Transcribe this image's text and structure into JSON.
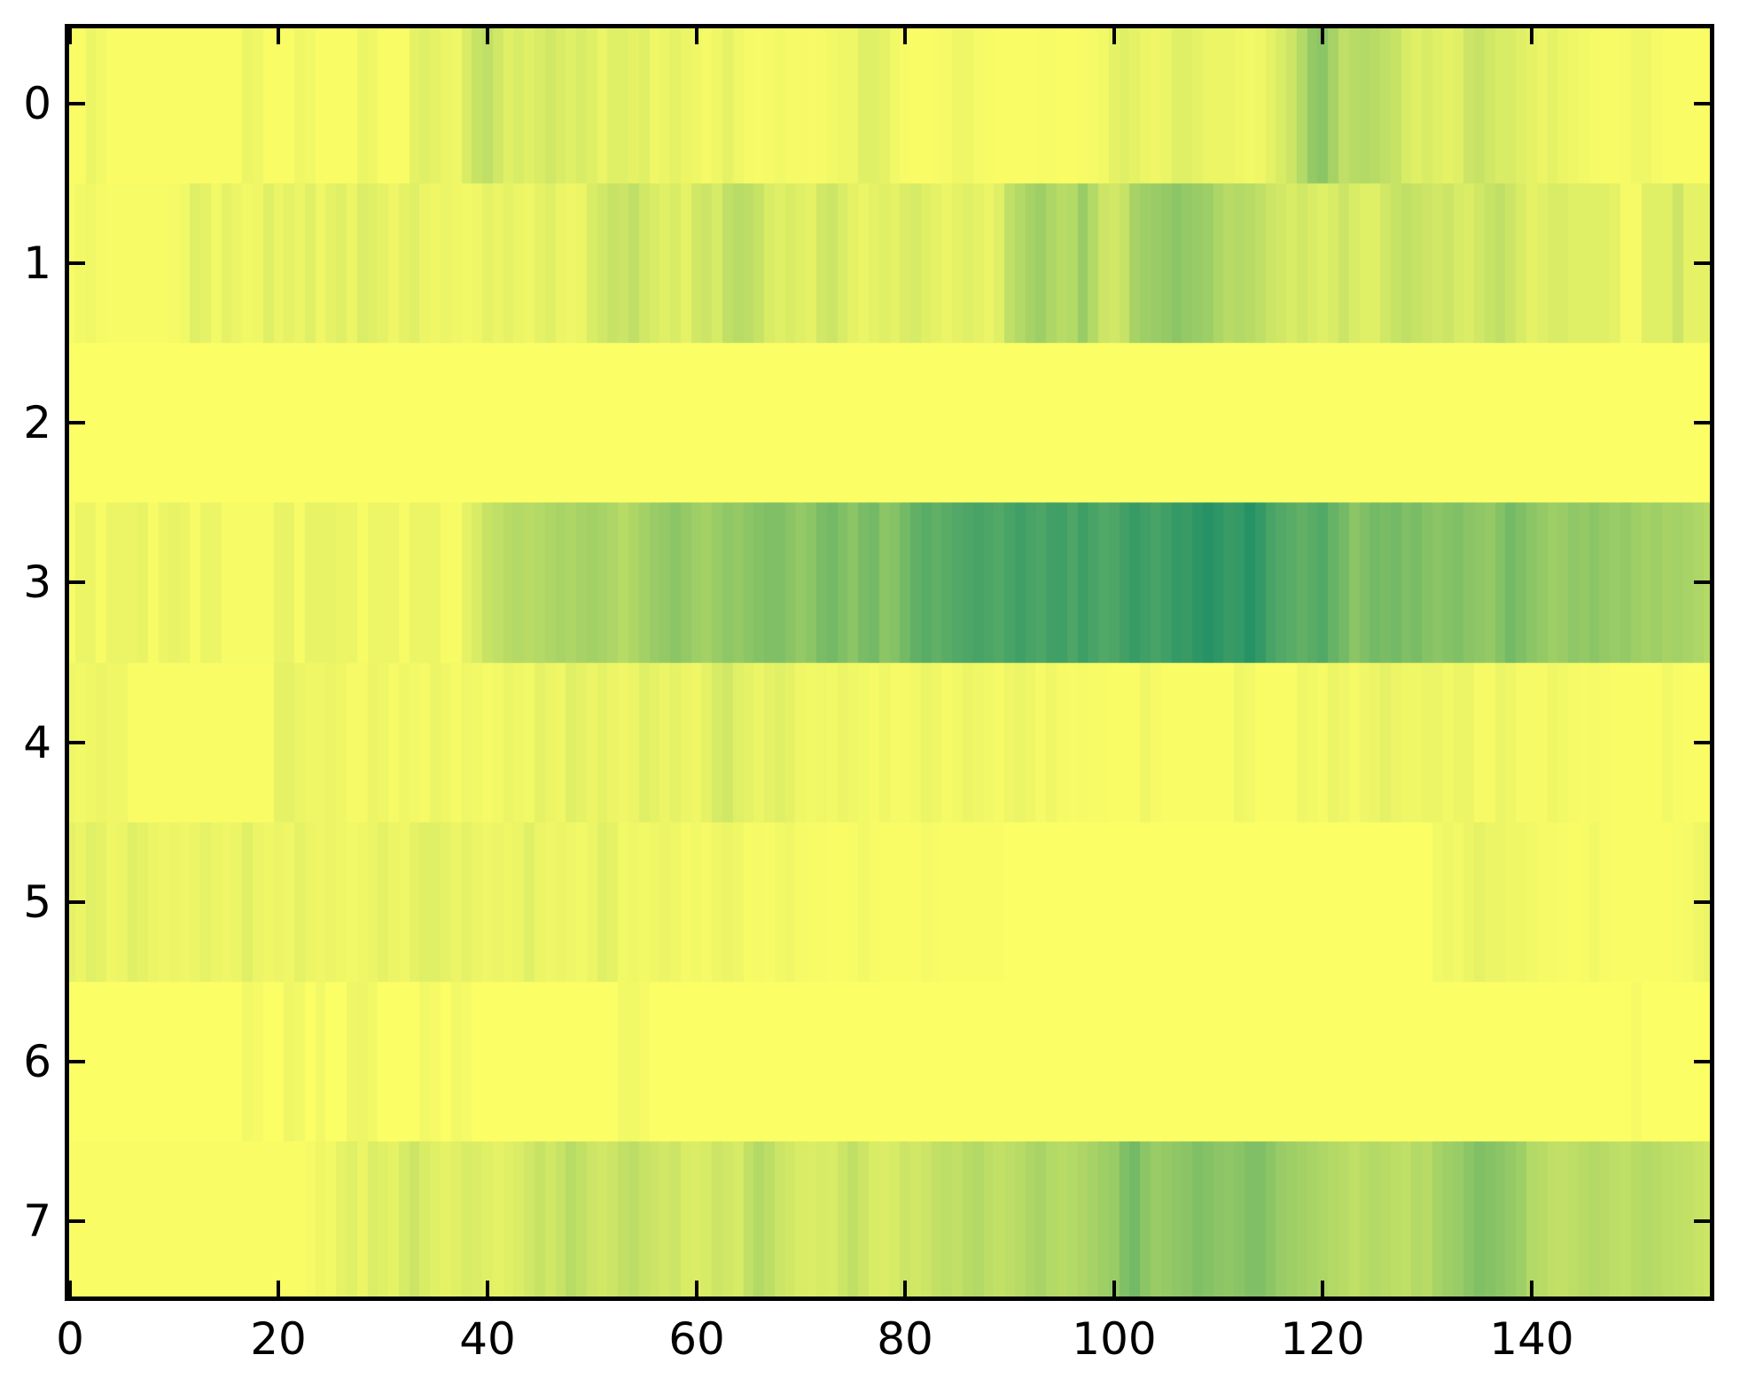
{
  "figure": {
    "background_color": "#ffffff",
    "spine_color": "#000000",
    "tick_color": "#000000",
    "label_color": "#000000"
  },
  "chart_data": {
    "type": "heatmap",
    "title": "",
    "xlabel": "",
    "ylabel": "",
    "n_rows": 8,
    "n_cols": 158,
    "x_range": [
      -0.5,
      157.5
    ],
    "y_range": [
      -0.5,
      7.5
    ],
    "grid": false,
    "legend_position": "none",
    "x_ticks": [
      0,
      20,
      40,
      60,
      80,
      100,
      120,
      140
    ],
    "x_tick_labels": [
      "0",
      "20",
      "40",
      "60",
      "80",
      "100",
      "120",
      "140"
    ],
    "y_ticks": [
      0,
      1,
      2,
      3,
      4,
      5,
      6,
      7
    ],
    "y_tick_labels": [
      "0",
      "1",
      "2",
      "3",
      "4",
      "5",
      "6",
      "7"
    ],
    "colormap": {
      "name": "summer_r",
      "low_color": "#ffff66",
      "high_color": "#007f66",
      "value_low": 0.0,
      "value_high": 1.0
    },
    "values": [
      [
        0.02,
        0.02,
        0.08,
        0.05,
        0.02,
        0.02,
        0.02,
        0.02,
        0.02,
        0.02,
        0.02,
        0.02,
        0.02,
        0.02,
        0.02,
        0.02,
        0.02,
        0.08,
        0.06,
        0.02,
        0.02,
        0.02,
        0.06,
        0.05,
        0.02,
        0.02,
        0.02,
        0.02,
        0.08,
        0.06,
        0.02,
        0.02,
        0.02,
        0.1,
        0.12,
        0.1,
        0.08,
        0.06,
        0.15,
        0.22,
        0.25,
        0.18,
        0.12,
        0.15,
        0.12,
        0.15,
        0.18,
        0.15,
        0.12,
        0.15,
        0.12,
        0.08,
        0.12,
        0.12,
        0.1,
        0.12,
        0.06,
        0.08,
        0.1,
        0.08,
        0.06,
        0.04,
        0.06,
        0.1,
        0.06,
        0.04,
        0.03,
        0.04,
        0.05,
        0.04,
        0.04,
        0.03,
        0.04,
        0.05,
        0.06,
        0.06,
        0.12,
        0.12,
        0.1,
        0.05,
        0.03,
        0.02,
        0.02,
        0.03,
        0.04,
        0.06,
        0.06,
        0.04,
        0.03,
        0.02,
        0.02,
        0.02,
        0.02,
        0.03,
        0.03,
        0.02,
        0.02,
        0.03,
        0.04,
        0.05,
        0.1,
        0.12,
        0.1,
        0.08,
        0.06,
        0.08,
        0.12,
        0.12,
        0.1,
        0.08,
        0.08,
        0.08,
        0.06,
        0.05,
        0.06,
        0.1,
        0.15,
        0.2,
        0.3,
        0.42,
        0.45,
        0.35,
        0.25,
        0.28,
        0.3,
        0.28,
        0.25,
        0.22,
        0.15,
        0.12,
        0.15,
        0.12,
        0.1,
        0.12,
        0.2,
        0.22,
        0.18,
        0.15,
        0.15,
        0.12,
        0.1,
        0.08,
        0.1,
        0.08,
        0.06,
        0.05,
        0.04,
        0.03,
        0.03,
        0.04,
        0.06,
        0.06,
        0.04,
        0.02,
        0.02,
        0.02,
        0.02,
        0.02
      ],
      [
        0.03,
        0.05,
        0.06,
        0.04,
        0.03,
        0.03,
        0.03,
        0.03,
        0.03,
        0.03,
        0.04,
        0.05,
        0.12,
        0.1,
        0.05,
        0.1,
        0.08,
        0.05,
        0.06,
        0.12,
        0.08,
        0.1,
        0.08,
        0.12,
        0.06,
        0.1,
        0.12,
        0.08,
        0.14,
        0.12,
        0.1,
        0.06,
        0.1,
        0.12,
        0.08,
        0.06,
        0.08,
        0.06,
        0.05,
        0.06,
        0.1,
        0.08,
        0.1,
        0.08,
        0.06,
        0.1,
        0.12,
        0.08,
        0.06,
        0.08,
        0.15,
        0.18,
        0.22,
        0.2,
        0.25,
        0.18,
        0.15,
        0.12,
        0.15,
        0.1,
        0.18,
        0.2,
        0.16,
        0.25,
        0.28,
        0.26,
        0.22,
        0.15,
        0.12,
        0.15,
        0.12,
        0.1,
        0.18,
        0.2,
        0.15,
        0.1,
        0.08,
        0.1,
        0.12,
        0.1,
        0.14,
        0.16,
        0.12,
        0.1,
        0.08,
        0.1,
        0.12,
        0.1,
        0.08,
        0.12,
        0.25,
        0.3,
        0.35,
        0.38,
        0.32,
        0.28,
        0.3,
        0.4,
        0.3,
        0.2,
        0.18,
        0.22,
        0.35,
        0.38,
        0.4,
        0.42,
        0.45,
        0.42,
        0.4,
        0.38,
        0.32,
        0.28,
        0.3,
        0.28,
        0.25,
        0.2,
        0.18,
        0.15,
        0.18,
        0.15,
        0.12,
        0.15,
        0.2,
        0.15,
        0.12,
        0.12,
        0.18,
        0.22,
        0.25,
        0.22,
        0.2,
        0.18,
        0.2,
        0.16,
        0.14,
        0.18,
        0.22,
        0.25,
        0.2,
        0.15,
        0.1,
        0.12,
        0.15,
        0.15,
        0.12,
        0.12,
        0.12,
        0.12,
        0.1,
        0.04,
        0.04,
        0.12,
        0.12,
        0.12,
        0.2,
        0.1,
        0.1,
        0.1
      ],
      [
        0.01,
        0.01,
        0.01,
        0.01,
        0.01,
        0.01,
        0.01,
        0.01,
        0.01,
        0.01,
        0.01,
        0.01,
        0.01,
        0.01,
        0.01,
        0.01,
        0.01,
        0.01,
        0.01,
        0.01,
        0.01,
        0.01,
        0.01,
        0.01,
        0.01,
        0.01,
        0.01,
        0.01,
        0.01,
        0.01,
        0.01,
        0.01,
        0.01,
        0.01,
        0.01,
        0.01,
        0.01,
        0.01,
        0.01,
        0.01,
        0.01,
        0.01,
        0.01,
        0.01,
        0.01,
        0.01,
        0.01,
        0.01,
        0.01,
        0.01,
        0.01,
        0.01,
        0.01,
        0.01,
        0.01,
        0.01,
        0.01,
        0.01,
        0.01,
        0.01,
        0.01,
        0.01,
        0.01,
        0.01,
        0.01,
        0.01,
        0.01,
        0.01,
        0.01,
        0.01,
        0.01,
        0.01,
        0.01,
        0.01,
        0.01,
        0.01,
        0.01,
        0.01,
        0.01,
        0.01,
        0.01,
        0.01,
        0.01,
        0.01,
        0.01,
        0.01,
        0.01,
        0.01,
        0.01,
        0.01,
        0.01,
        0.01,
        0.01,
        0.01,
        0.01,
        0.01,
        0.01,
        0.01,
        0.01,
        0.01,
        0.01,
        0.01,
        0.01,
        0.01,
        0.01,
        0.01,
        0.01,
        0.01,
        0.01,
        0.01,
        0.01,
        0.01,
        0.01,
        0.01,
        0.01,
        0.01,
        0.01,
        0.01,
        0.01,
        0.01,
        0.01,
        0.01,
        0.01,
        0.01,
        0.01,
        0.01,
        0.01,
        0.01,
        0.01,
        0.01,
        0.01,
        0.01,
        0.01,
        0.01,
        0.01,
        0.01,
        0.01,
        0.01,
        0.01,
        0.01,
        0.01,
        0.01,
        0.01,
        0.01,
        0.01,
        0.01,
        0.01,
        0.01,
        0.01,
        0.01,
        0.01,
        0.01,
        0.01,
        0.01,
        0.01,
        0.01,
        0.01,
        0.01
      ],
      [
        0.03,
        0.08,
        0.08,
        0.03,
        0.08,
        0.08,
        0.08,
        0.09,
        0.03,
        0.08,
        0.09,
        0.08,
        0.03,
        0.08,
        0.08,
        0.03,
        0.03,
        0.03,
        0.03,
        0.03,
        0.09,
        0.09,
        0.03,
        0.09,
        0.09,
        0.09,
        0.08,
        0.08,
        0.03,
        0.07,
        0.07,
        0.07,
        0.03,
        0.08,
        0.08,
        0.08,
        0.03,
        0.03,
        0.1,
        0.15,
        0.22,
        0.25,
        0.28,
        0.3,
        0.28,
        0.3,
        0.32,
        0.34,
        0.32,
        0.35,
        0.36,
        0.35,
        0.32,
        0.28,
        0.32,
        0.36,
        0.4,
        0.42,
        0.45,
        0.42,
        0.38,
        0.36,
        0.4,
        0.44,
        0.42,
        0.45,
        0.48,
        0.5,
        0.5,
        0.46,
        0.42,
        0.45,
        0.52,
        0.55,
        0.5,
        0.45,
        0.52,
        0.55,
        0.45,
        0.48,
        0.55,
        0.62,
        0.65,
        0.62,
        0.65,
        0.68,
        0.7,
        0.72,
        0.7,
        0.68,
        0.72,
        0.75,
        0.72,
        0.7,
        0.74,
        0.75,
        0.7,
        0.76,
        0.72,
        0.68,
        0.7,
        0.74,
        0.78,
        0.75,
        0.72,
        0.75,
        0.8,
        0.78,
        0.82,
        0.85,
        0.82,
        0.78,
        0.8,
        0.85,
        0.8,
        0.72,
        0.68,
        0.65,
        0.62,
        0.65,
        0.68,
        0.6,
        0.55,
        0.45,
        0.5,
        0.55,
        0.52,
        0.55,
        0.5,
        0.52,
        0.48,
        0.45,
        0.48,
        0.5,
        0.46,
        0.44,
        0.42,
        0.48,
        0.55,
        0.5,
        0.45,
        0.42,
        0.38,
        0.4,
        0.44,
        0.42,
        0.45,
        0.42,
        0.4,
        0.42,
        0.38,
        0.36,
        0.38,
        0.35,
        0.36,
        0.34,
        0.32,
        0.3
      ],
      [
        0.06,
        0.05,
        0.06,
        0.08,
        0.06,
        0.06,
        0.02,
        0.02,
        0.02,
        0.02,
        0.02,
        0.02,
        0.02,
        0.02,
        0.02,
        0.02,
        0.02,
        0.02,
        0.02,
        0.02,
        0.1,
        0.1,
        0.08,
        0.06,
        0.06,
        0.08,
        0.06,
        0.04,
        0.04,
        0.08,
        0.06,
        0.04,
        0.06,
        0.05,
        0.04,
        0.08,
        0.06,
        0.04,
        0.06,
        0.05,
        0.04,
        0.05,
        0.08,
        0.06,
        0.05,
        0.1,
        0.08,
        0.06,
        0.12,
        0.1,
        0.08,
        0.1,
        0.08,
        0.06,
        0.08,
        0.12,
        0.1,
        0.08,
        0.1,
        0.08,
        0.06,
        0.1,
        0.16,
        0.18,
        0.12,
        0.1,
        0.08,
        0.1,
        0.12,
        0.1,
        0.06,
        0.05,
        0.06,
        0.05,
        0.08,
        0.06,
        0.05,
        0.04,
        0.06,
        0.04,
        0.04,
        0.05,
        0.08,
        0.06,
        0.04,
        0.05,
        0.08,
        0.06,
        0.05,
        0.04,
        0.06,
        0.08,
        0.06,
        0.04,
        0.06,
        0.04,
        0.03,
        0.04,
        0.03,
        0.03,
        0.02,
        0.02,
        0.02,
        0.06,
        0.04,
        0.02,
        0.02,
        0.02,
        0.02,
        0.02,
        0.02,
        0.02,
        0.06,
        0.05,
        0.02,
        0.02,
        0.02,
        0.02,
        0.06,
        0.05,
        0.04,
        0.08,
        0.06,
        0.04,
        0.06,
        0.08,
        0.1,
        0.08,
        0.06,
        0.06,
        0.08,
        0.08,
        0.05,
        0.08,
        0.08,
        0.04,
        0.04,
        0.08,
        0.06,
        0.04,
        0.04,
        0.04,
        0.06,
        0.05,
        0.04,
        0.03,
        0.04,
        0.03,
        0.02,
        0.02,
        0.02,
        0.02,
        0.02,
        0.05,
        0.03,
        0.02,
        0.02,
        0.02
      ],
      [
        0.1,
        0.08,
        0.12,
        0.1,
        0.06,
        0.08,
        0.12,
        0.1,
        0.08,
        0.06,
        0.08,
        0.06,
        0.08,
        0.1,
        0.08,
        0.06,
        0.08,
        0.12,
        0.08,
        0.06,
        0.08,
        0.06,
        0.1,
        0.08,
        0.06,
        0.08,
        0.06,
        0.05,
        0.06,
        0.08,
        0.1,
        0.08,
        0.06,
        0.1,
        0.12,
        0.12,
        0.1,
        0.08,
        0.1,
        0.08,
        0.06,
        0.08,
        0.06,
        0.08,
        0.12,
        0.08,
        0.06,
        0.08,
        0.06,
        0.05,
        0.08,
        0.12,
        0.1,
        0.05,
        0.06,
        0.05,
        0.06,
        0.08,
        0.06,
        0.04,
        0.05,
        0.04,
        0.06,
        0.08,
        0.06,
        0.03,
        0.04,
        0.03,
        0.05,
        0.06,
        0.04,
        0.03,
        0.03,
        0.02,
        0.02,
        0.03,
        0.05,
        0.03,
        0.02,
        0.02,
        0.02,
        0.02,
        0.04,
        0.03,
        0.02,
        0.02,
        0.02,
        0.02,
        0.02,
        0.02,
        0.01,
        0.01,
        0.01,
        0.01,
        0.01,
        0.01,
        0.01,
        0.01,
        0.01,
        0.01,
        0.01,
        0.01,
        0.01,
        0.01,
        0.01,
        0.01,
        0.01,
        0.01,
        0.01,
        0.01,
        0.01,
        0.01,
        0.01,
        0.01,
        0.01,
        0.01,
        0.01,
        0.01,
        0.01,
        0.01,
        0.01,
        0.01,
        0.01,
        0.01,
        0.01,
        0.01,
        0.01,
        0.01,
        0.01,
        0.01,
        0.01,
        0.05,
        0.06,
        0.05,
        0.08,
        0.1,
        0.08,
        0.08,
        0.06,
        0.06,
        0.05,
        0.04,
        0.04,
        0.03,
        0.02,
        0.03,
        0.05,
        0.03,
        0.02,
        0.02,
        0.02,
        0.02,
        0.02,
        0.02,
        0.03,
        0.04,
        0.06,
        0.08
      ],
      [
        0.01,
        0.01,
        0.01,
        0.01,
        0.01,
        0.01,
        0.01,
        0.01,
        0.01,
        0.01,
        0.01,
        0.01,
        0.01,
        0.01,
        0.01,
        0.01,
        0.01,
        0.05,
        0.04,
        0.01,
        0.01,
        0.06,
        0.05,
        0.01,
        0.05,
        0.01,
        0.01,
        0.06,
        0.07,
        0.05,
        0.01,
        0.01,
        0.01,
        0.01,
        0.05,
        0.04,
        0.01,
        0.05,
        0.04,
        0.01,
        0.01,
        0.01,
        0.01,
        0.01,
        0.01,
        0.01,
        0.01,
        0.01,
        0.01,
        0.01,
        0.01,
        0.01,
        0.01,
        0.05,
        0.05,
        0.04,
        0.01,
        0.01,
        0.01,
        0.01,
        0.01,
        0.01,
        0.01,
        0.01,
        0.01,
        0.01,
        0.01,
        0.01,
        0.01,
        0.01,
        0.01,
        0.01,
        0.01,
        0.01,
        0.01,
        0.01,
        0.01,
        0.01,
        0.01,
        0.01,
        0.01,
        0.01,
        0.01,
        0.01,
        0.01,
        0.01,
        0.01,
        0.01,
        0.01,
        0.01,
        0.01,
        0.01,
        0.01,
        0.01,
        0.01,
        0.01,
        0.01,
        0.01,
        0.01,
        0.01,
        0.01,
        0.01,
        0.01,
        0.01,
        0.01,
        0.01,
        0.01,
        0.01,
        0.01,
        0.01,
        0.01,
        0.01,
        0.01,
        0.01,
        0.01,
        0.01,
        0.01,
        0.01,
        0.01,
        0.01,
        0.01,
        0.01,
        0.01,
        0.01,
        0.01,
        0.01,
        0.01,
        0.01,
        0.01,
        0.01,
        0.01,
        0.01,
        0.01,
        0.01,
        0.01,
        0.01,
        0.01,
        0.01,
        0.01,
        0.01,
        0.01,
        0.01,
        0.01,
        0.01,
        0.01,
        0.01,
        0.01,
        0.01,
        0.01,
        0.01,
        0.04,
        0.01,
        0.01,
        0.01,
        0.01,
        0.01,
        0.01,
        0.01
      ],
      [
        0.02,
        0.02,
        0.02,
        0.02,
        0.02,
        0.02,
        0.02,
        0.02,
        0.02,
        0.02,
        0.02,
        0.02,
        0.02,
        0.02,
        0.02,
        0.02,
        0.02,
        0.02,
        0.02,
        0.02,
        0.02,
        0.02,
        0.02,
        0.04,
        0.06,
        0.05,
        0.1,
        0.12,
        0.08,
        0.14,
        0.12,
        0.1,
        0.16,
        0.2,
        0.15,
        0.12,
        0.1,
        0.12,
        0.15,
        0.14,
        0.12,
        0.1,
        0.12,
        0.14,
        0.18,
        0.22,
        0.18,
        0.22,
        0.28,
        0.24,
        0.2,
        0.18,
        0.2,
        0.24,
        0.26,
        0.22,
        0.2,
        0.18,
        0.2,
        0.15,
        0.14,
        0.16,
        0.2,
        0.18,
        0.16,
        0.24,
        0.3,
        0.26,
        0.2,
        0.18,
        0.15,
        0.14,
        0.16,
        0.15,
        0.2,
        0.25,
        0.2,
        0.15,
        0.14,
        0.16,
        0.2,
        0.18,
        0.2,
        0.24,
        0.26,
        0.24,
        0.28,
        0.3,
        0.26,
        0.24,
        0.26,
        0.28,
        0.32,
        0.34,
        0.3,
        0.28,
        0.3,
        0.32,
        0.35,
        0.38,
        0.4,
        0.5,
        0.55,
        0.45,
        0.4,
        0.42,
        0.44,
        0.46,
        0.5,
        0.48,
        0.45,
        0.44,
        0.46,
        0.5,
        0.5,
        0.45,
        0.4,
        0.38,
        0.36,
        0.34,
        0.32,
        0.3,
        0.28,
        0.25,
        0.28,
        0.3,
        0.28,
        0.26,
        0.25,
        0.3,
        0.28,
        0.35,
        0.38,
        0.4,
        0.45,
        0.5,
        0.48,
        0.45,
        0.42,
        0.38,
        0.3,
        0.28,
        0.25,
        0.24,
        0.26,
        0.28,
        0.3,
        0.28,
        0.26,
        0.25,
        0.28,
        0.3,
        0.28,
        0.26,
        0.25,
        0.24,
        0.22,
        0.2
      ]
    ]
  }
}
